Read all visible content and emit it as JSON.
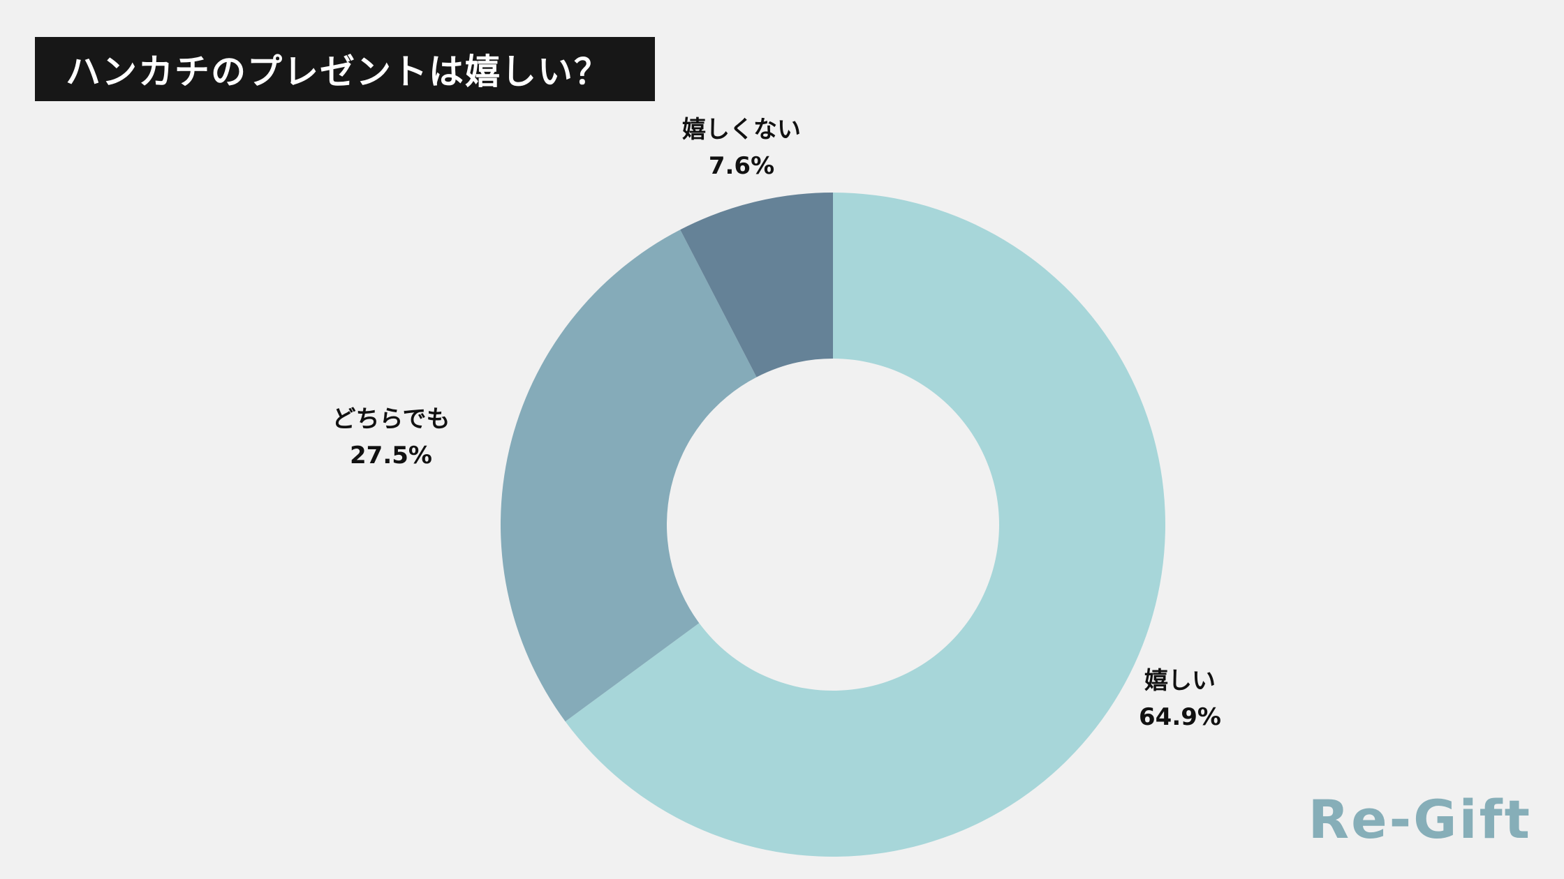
{
  "title": "ハンカチのプレゼントは嬉しい？",
  "logo": "Re-Gift",
  "chart_data": {
    "type": "pie",
    "donut": true,
    "start": "top",
    "direction": "clockwise",
    "slices": [
      {
        "label": "嬉しい",
        "value": 64.9,
        "value_label": "64.9%",
        "color": "#a7d6d9"
      },
      {
        "label": "どちらでも",
        "value": 27.5,
        "value_label": "27.5%",
        "color": "#85abb9"
      },
      {
        "label": "嬉しくない",
        "value": 7.6,
        "value_label": "7.6%",
        "color": "#658297"
      }
    ]
  }
}
